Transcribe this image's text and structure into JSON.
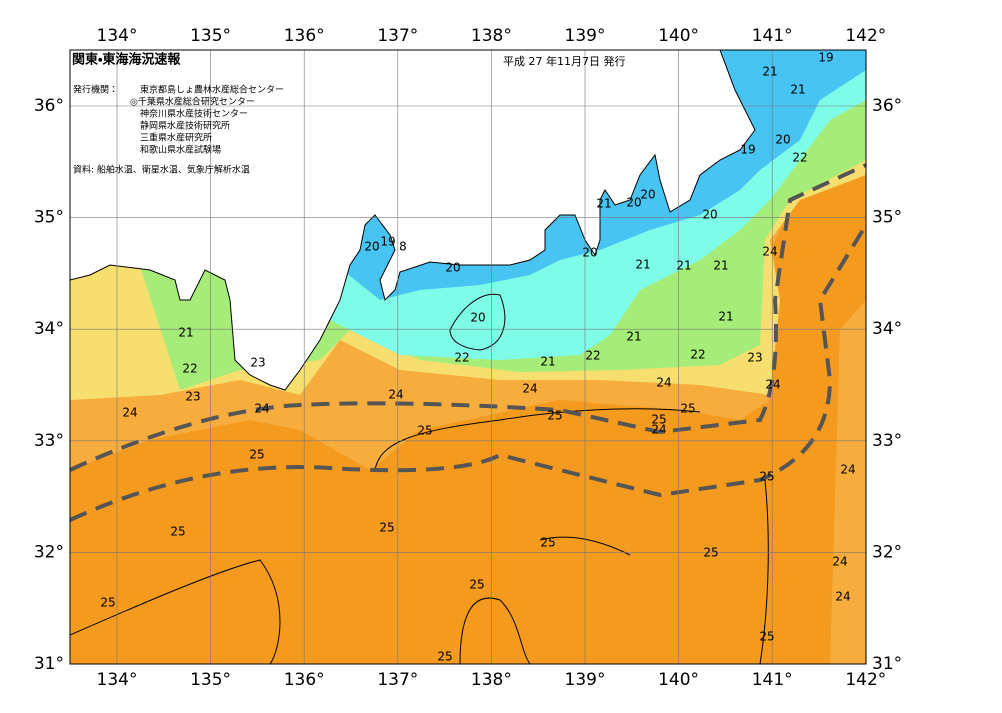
{
  "header": {
    "title": "関東・東海海況速報",
    "date": "平成 27 年11月7日 発行",
    "issuer_label": "発行機関：",
    "issuers": [
      "東京都島しょ農林水産総合センター",
      "◎千葉県水産総合研究センター",
      "神奈川県水産技術センター",
      "静岡県水産技術研究所",
      "三重県水産研究所",
      "和歌山県水産試験場"
    ],
    "source": "資料: 船舶水温、衛星水温、気象庁解析水温"
  },
  "map": {
    "lon_ticks": [
      {
        "value": 134,
        "label": "134°"
      },
      {
        "value": 135,
        "label": "135°"
      },
      {
        "value": 136,
        "label": "136°"
      },
      {
        "value": 137,
        "label": "137°"
      },
      {
        "value": 138,
        "label": "138°"
      },
      {
        "value": 139,
        "label": "139°"
      },
      {
        "value": 140,
        "label": "140°"
      },
      {
        "value": 141,
        "label": "141°"
      },
      {
        "value": 142,
        "label": "142°"
      }
    ],
    "lat_ticks": [
      {
        "value": 31,
        "label": "31°"
      },
      {
        "value": 32,
        "label": "32°"
      },
      {
        "value": 33,
        "label": "33°"
      },
      {
        "value": 34,
        "label": "34°"
      },
      {
        "value": 35,
        "label": "35°"
      },
      {
        "value": 36,
        "label": "36°"
      }
    ],
    "contour_labels": [
      "19",
      "21",
      "21",
      "20",
      "19",
      "22",
      "20",
      "21",
      "20",
      "20",
      "20",
      "19",
      "8",
      "20",
      "20",
      "24",
      "21",
      "21",
      "21",
      "20",
      "21",
      "21",
      "21",
      "22",
      "21",
      "22",
      "22",
      "23",
      "23",
      "22",
      "24",
      "24",
      "24",
      "24",
      "23",
      "24",
      "24",
      "25",
      "25",
      "25",
      "24",
      "25",
      "25",
      "24",
      "25",
      "25",
      "25",
      "25",
      "25",
      "24",
      "25",
      "24",
      "25",
      "25",
      "25"
    ]
  }
}
